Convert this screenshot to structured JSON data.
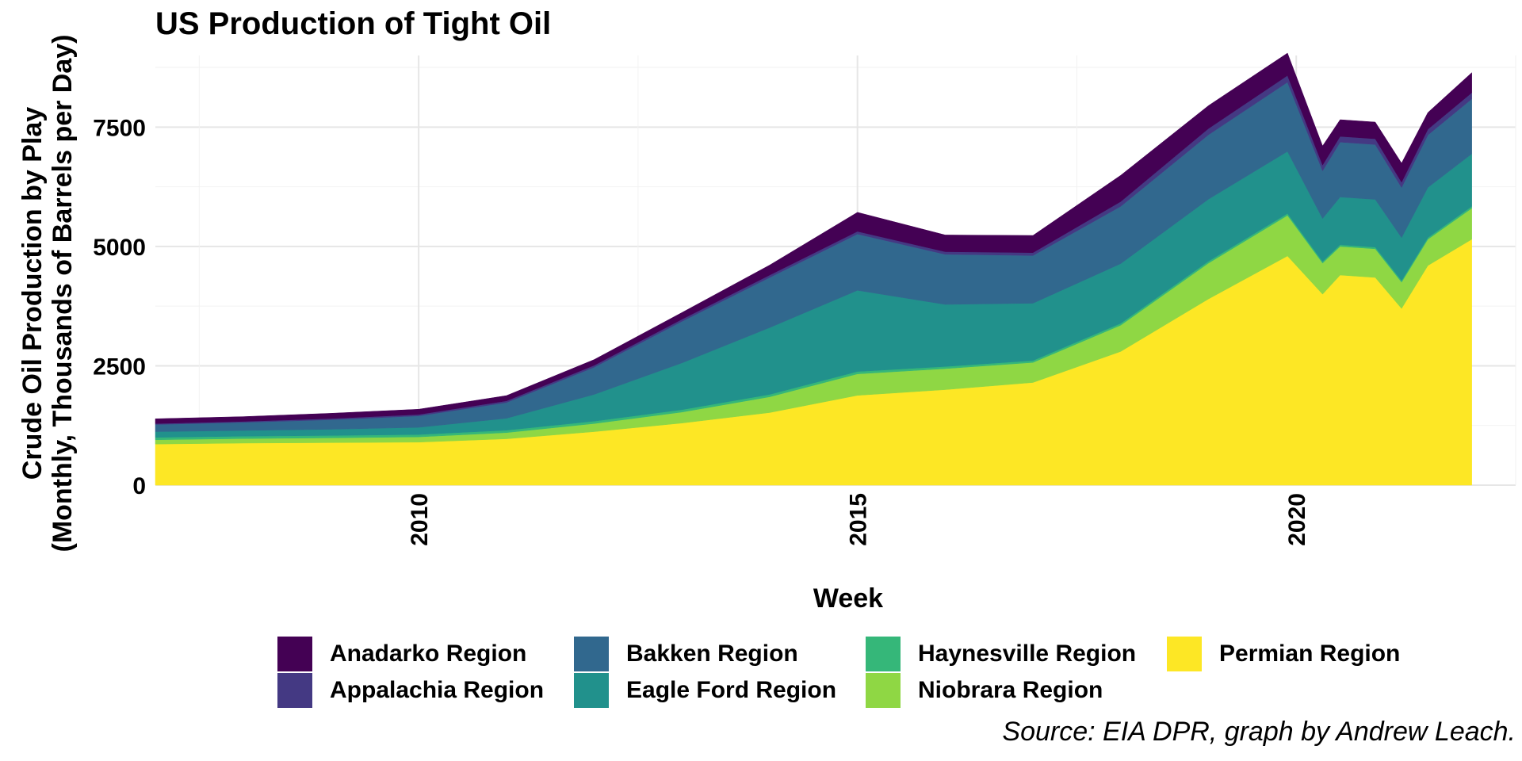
{
  "chart_data": {
    "type": "area",
    "stacked": true,
    "title": "US Production of Tight Oil",
    "xlabel": "Week",
    "ylabel_line1": "Crude Oil Production by Play",
    "ylabel_line2": "(Monthly, Thousands of Barrels per Day)",
    "caption": "Source: EIA DPR, graph by Andrew Leach.",
    "x_ticks": [
      2010,
      2015,
      2020
    ],
    "y_ticks": [
      0,
      2500,
      5000,
      7500
    ],
    "xlim": [
      2007.0,
      2022.5
    ],
    "ylim": [
      0,
      9000
    ],
    "grid": true,
    "legend_position": "bottom",
    "x": [
      2007.0,
      2008.0,
      2009.0,
      2010.0,
      2011.0,
      2012.0,
      2013.0,
      2014.0,
      2015.0,
      2016.0,
      2017.0,
      2018.0,
      2019.0,
      2019.9,
      2020.3,
      2020.5,
      2020.9,
      2021.2,
      2021.5,
      2022.0
    ],
    "series": [
      {
        "name": "Permian Region",
        "color": "#fde725",
        "values": [
          860,
          880,
          890,
          900,
          970,
          1120,
          1300,
          1520,
          1880,
          2000,
          2150,
          2800,
          3900,
          4800,
          4000,
          4400,
          4350,
          3700,
          4600,
          5150
        ]
      },
      {
        "name": "Niobrara Region",
        "color": "#8fd744",
        "values": [
          90,
          95,
          100,
          110,
          130,
          170,
          230,
          330,
          450,
          440,
          420,
          550,
          750,
          850,
          650,
          600,
          600,
          550,
          550,
          650
        ]
      },
      {
        "name": "Haynesville Region",
        "color": "#35b779",
        "values": [
          50,
          50,
          50,
          50,
          50,
          50,
          50,
          50,
          50,
          45,
          40,
          40,
          40,
          40,
          35,
          35,
          35,
          35,
          35,
          40
        ]
      },
      {
        "name": "Eagle Ford Region",
        "color": "#21918c",
        "values": [
          120,
          120,
          130,
          150,
          250,
          560,
          980,
          1400,
          1700,
          1300,
          1200,
          1250,
          1300,
          1300,
          900,
          1000,
          1000,
          900,
          1050,
          1100
        ]
      },
      {
        "name": "Bakken Region",
        "color": "#31688e",
        "values": [
          150,
          170,
          200,
          240,
          330,
          570,
          870,
          1050,
          1180,
          1050,
          1000,
          1200,
          1350,
          1450,
          1000,
          1150,
          1150,
          1050,
          1100,
          1150
        ]
      },
      {
        "name": "Appalachia Region",
        "color": "#443983",
        "values": [
          20,
          20,
          25,
          30,
          35,
          40,
          45,
          50,
          55,
          55,
          60,
          100,
          130,
          140,
          120,
          120,
          120,
          110,
          120,
          130
        ]
      },
      {
        "name": "Anadarko Region",
        "color": "#440154",
        "values": [
          100,
          100,
          110,
          110,
          110,
          120,
          140,
          210,
          400,
          350,
          360,
          550,
          480,
          470,
          400,
          350,
          350,
          400,
          350,
          420
        ]
      }
    ]
  },
  "legend": {
    "items": [
      {
        "label": "Anadarko Region",
        "color": "#440154"
      },
      {
        "label": "Appalachia Region",
        "color": "#443983"
      },
      {
        "label": "Bakken Region",
        "color": "#31688e"
      },
      {
        "label": "Eagle Ford Region",
        "color": "#21918c"
      },
      {
        "label": "Haynesville Region",
        "color": "#35b779"
      },
      {
        "label": "Niobrara Region",
        "color": "#8fd744"
      },
      {
        "label": "Permian Region",
        "color": "#fde725"
      }
    ]
  }
}
